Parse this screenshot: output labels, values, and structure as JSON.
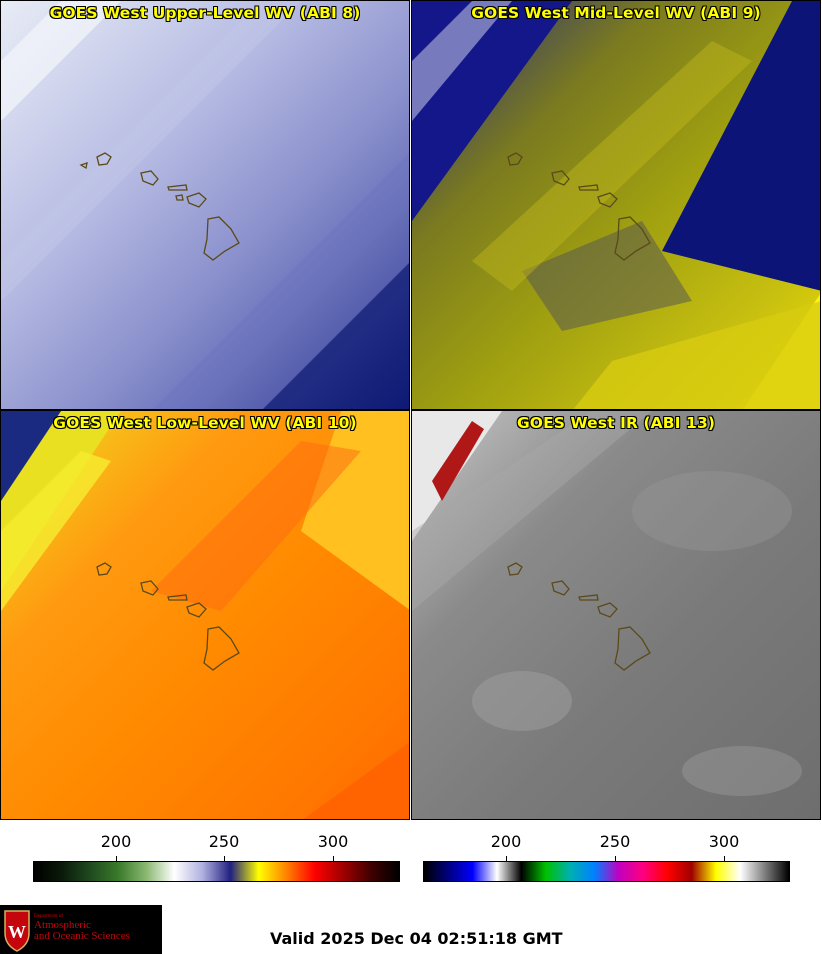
{
  "panels": [
    {
      "title": "GOES West Upper-Level WV (ABI 8)"
    },
    {
      "title": "GOES West Mid-Level WV (ABI 9)"
    },
    {
      "title": "GOES West Low-Level WV (ABI 10)"
    },
    {
      "title": "GOES West IR (ABI 13)"
    }
  ],
  "colorbars": {
    "wv": {
      "ticks": [
        "200",
        "250",
        "300"
      ],
      "colors": [
        "#000000",
        "#0a1a0a",
        "#1f4a1f",
        "#3a7a2a",
        "#8ab870",
        "#ffffff",
        "#b0b0e0",
        "#202080",
        "#ffff00",
        "#ff8000",
        "#ff0000",
        "#a00000",
        "#400000",
        "#000000"
      ]
    },
    "ir": {
      "ticks": [
        "200",
        "250",
        "300"
      ],
      "colors": [
        "#000000",
        "#000080",
        "#0000ff",
        "#ffffff",
        "#000000",
        "#00c000",
        "#00b0b0",
        "#0080ff",
        "#c000c0",
        "#ff0080",
        "#ff0000",
        "#a00000",
        "#ffff00",
        "#ffffff",
        "#808080",
        "#000000"
      ]
    }
  },
  "logo": {
    "line1": "Department of",
    "line2": "Atmospheric",
    "line3": "and Oceanic Sciences"
  },
  "valid_time": "Valid 2025 Dec 04 02:51:18 GMT"
}
